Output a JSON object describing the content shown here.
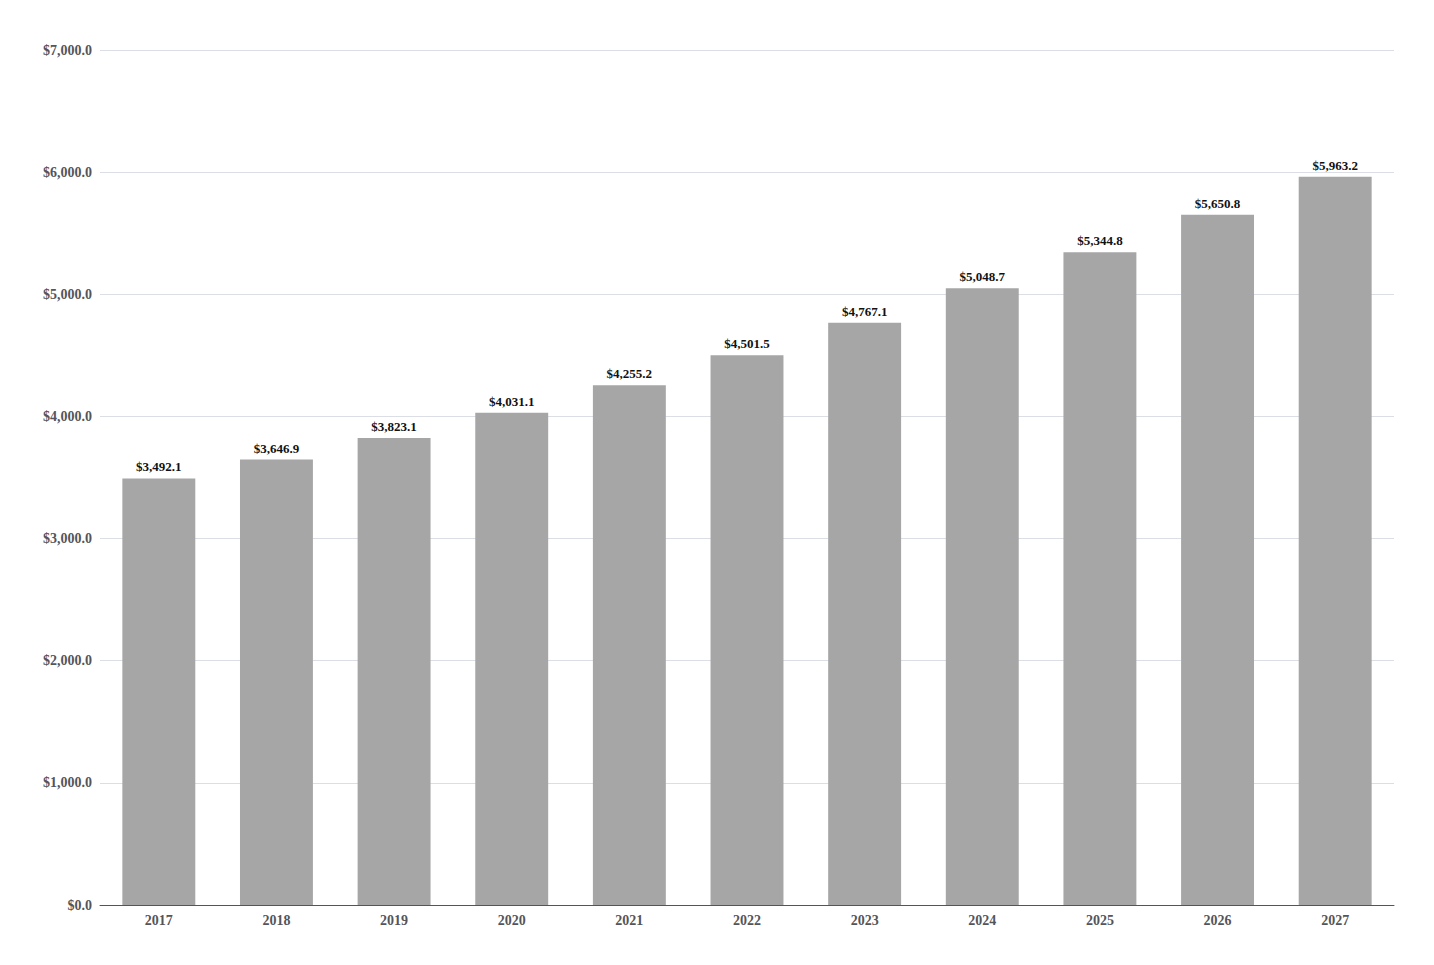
{
  "chart_data": {
    "type": "bar",
    "categories": [
      "2017",
      "2018",
      "2019",
      "2020",
      "2021",
      "2022",
      "2023",
      "2024",
      "2025",
      "2026",
      "2027"
    ],
    "values": [
      3492.1,
      3646.9,
      3823.1,
      4031.1,
      4255.2,
      4501.5,
      4767.1,
      5048.7,
      5344.8,
      5650.8,
      5963.2
    ],
    "value_labels": [
      "$3,492.1",
      "$3,646.9",
      "$3,823.1",
      "$4,031.1",
      "$4,255.2",
      "$4,501.5",
      "$4,767.1",
      "$5,048.7",
      "$5,344.8",
      "$5,650.8",
      "$5,963.2"
    ],
    "data_labels": true,
    "color": "#a6a6a6",
    "ylim": [
      0,
      7000
    ],
    "yticks": [
      {
        "value": 0,
        "label": "$0.0"
      },
      {
        "value": 1000,
        "label": "$1,000.0"
      },
      {
        "value": 2000,
        "label": "$2,000.0"
      },
      {
        "value": 3000,
        "label": "$3,000.0"
      },
      {
        "value": 4000,
        "label": "$4,000.0"
      },
      {
        "value": 5000,
        "label": "$5,000.0"
      },
      {
        "value": 6000,
        "label": "$6,000.0"
      },
      {
        "value": 7000,
        "label": "$7,000.0"
      }
    ],
    "grid": true
  }
}
